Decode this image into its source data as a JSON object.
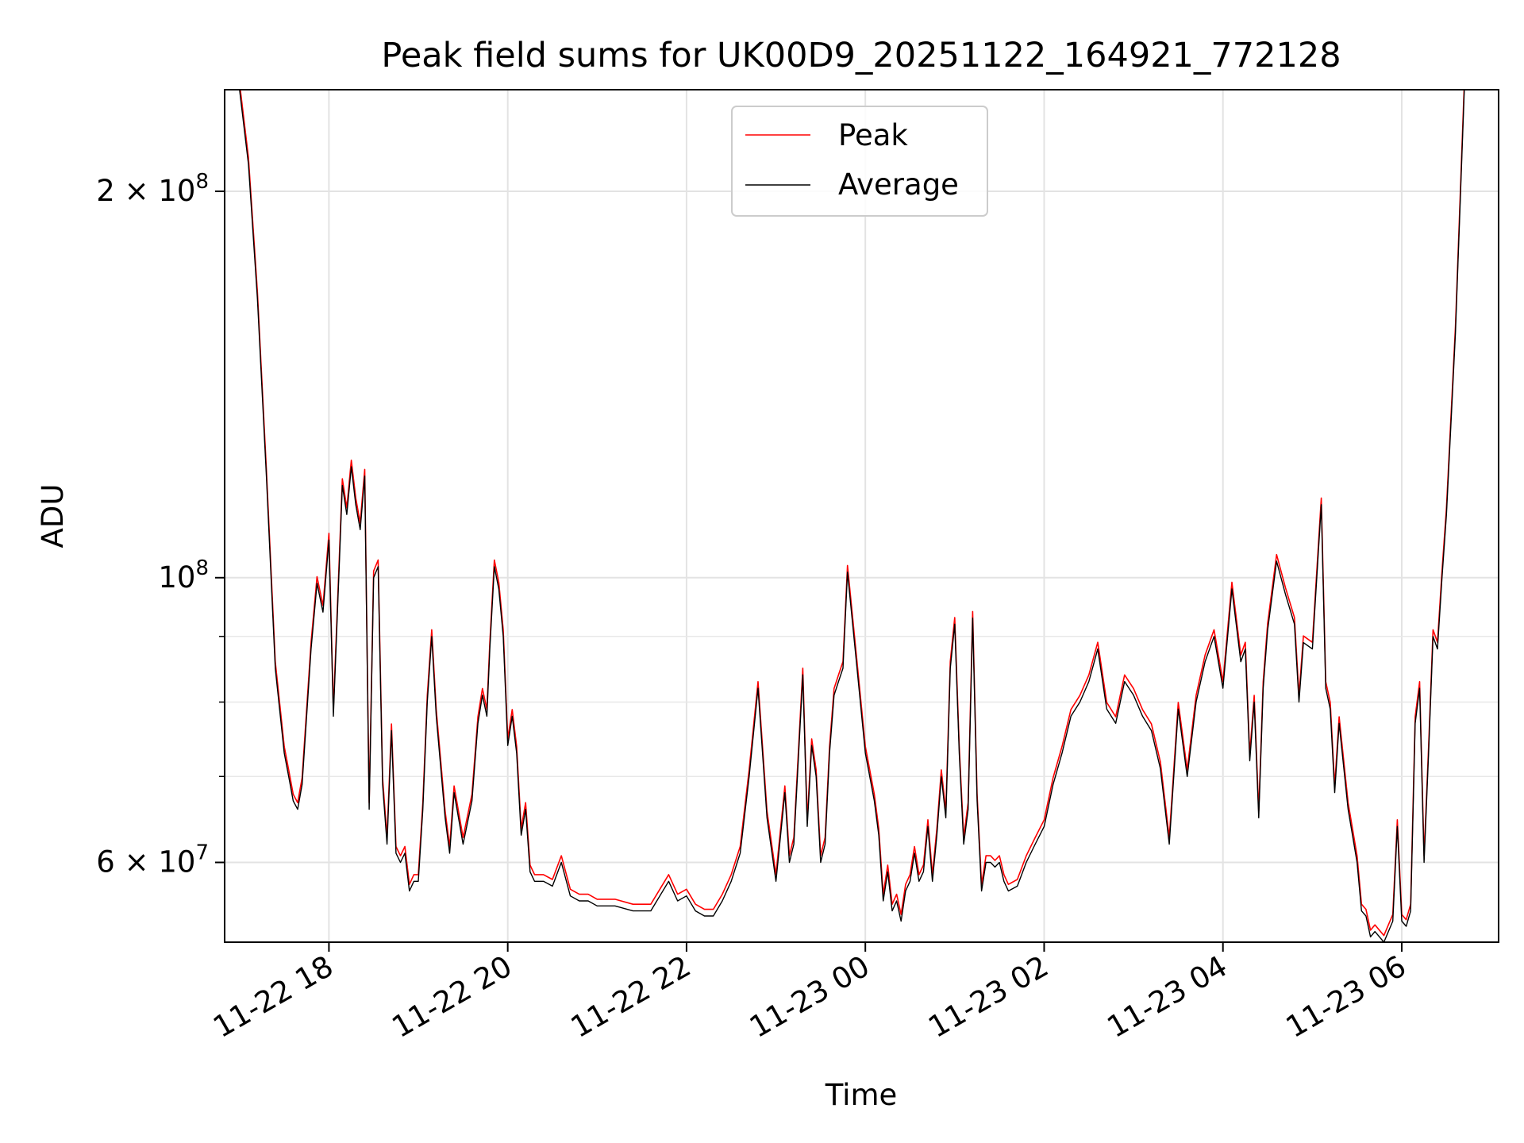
{
  "chart_data": {
    "type": "line",
    "title": "Peak field sums for UK00D9_20251122_164921_772128",
    "xlabel": "Time",
    "ylabel": "ADU",
    "y_scale": "log",
    "ylim": [
      52000000,
      240000000
    ],
    "xlim": [
      "2025-11-22 16:50",
      "2025-11-23 07:05"
    ],
    "grid": true,
    "legend_position": "upper center",
    "x_ticks": [
      {
        "t": "2025-11-22 18:00",
        "label": "11-22 18"
      },
      {
        "t": "2025-11-22 20:00",
        "label": "11-22 20"
      },
      {
        "t": "2025-11-22 22:00",
        "label": "11-22 22"
      },
      {
        "t": "2025-11-23 00:00",
        "label": "11-23 00"
      },
      {
        "t": "2025-11-23 02:00",
        "label": "11-23 02"
      },
      {
        "t": "2025-11-23 04:00",
        "label": "11-23 04"
      },
      {
        "t": "2025-11-23 06:00",
        "label": "11-23 06"
      }
    ],
    "y_ticks_major": [
      {
        "v": 60000000,
        "mant": "6",
        "exp": "7"
      },
      {
        "v": 100000000,
        "mant": "",
        "exp": "8"
      },
      {
        "v": 200000000,
        "mant": "2",
        "exp": "8"
      }
    ],
    "y_ticks_minor": [
      70000000,
      80000000,
      90000000
    ],
    "series": [
      {
        "name": "Peak",
        "color": "#ff0000",
        "offset_fraction": 0.012
      },
      {
        "name": "Average",
        "color": "#000000"
      }
    ],
    "x": [
      "2025-11-22 17:00",
      "2025-11-22 17:06",
      "2025-11-22 17:12",
      "2025-11-22 17:18",
      "2025-11-22 17:24",
      "2025-11-22 17:30",
      "2025-11-22 17:33",
      "2025-11-22 17:36",
      "2025-11-22 17:39",
      "2025-11-22 17:42",
      "2025-11-22 17:48",
      "2025-11-22 17:52",
      "2025-11-22 17:56",
      "2025-11-22 18:00",
      "2025-11-22 18:03",
      "2025-11-22 18:06",
      "2025-11-22 18:09",
      "2025-11-22 18:12",
      "2025-11-22 18:15",
      "2025-11-22 18:18",
      "2025-11-22 18:21",
      "2025-11-22 18:24",
      "2025-11-22 18:27",
      "2025-11-22 18:30",
      "2025-11-22 18:33",
      "2025-11-22 18:36",
      "2025-11-22 18:39",
      "2025-11-22 18:42",
      "2025-11-22 18:45",
      "2025-11-22 18:48",
      "2025-11-22 18:51",
      "2025-11-22 18:54",
      "2025-11-22 18:57",
      "2025-11-22 19:00",
      "2025-11-22 19:03",
      "2025-11-22 19:06",
      "2025-11-22 19:09",
      "2025-11-22 19:12",
      "2025-11-22 19:18",
      "2025-11-22 19:21",
      "2025-11-22 19:24",
      "2025-11-22 19:30",
      "2025-11-22 19:36",
      "2025-11-22 19:40",
      "2025-11-22 19:43",
      "2025-11-22 19:46",
      "2025-11-22 19:48",
      "2025-11-22 19:51",
      "2025-11-22 19:54",
      "2025-11-22 19:57",
      "2025-11-22 20:00",
      "2025-11-22 20:03",
      "2025-11-22 20:06",
      "2025-11-22 20:09",
      "2025-11-22 20:12",
      "2025-11-22 20:15",
      "2025-11-22 20:18",
      "2025-11-22 20:21",
      "2025-11-22 20:24",
      "2025-11-22 20:30",
      "2025-11-22 20:36",
      "2025-11-22 20:42",
      "2025-11-22 20:48",
      "2025-11-22 20:54",
      "2025-11-22 21:00",
      "2025-11-22 21:12",
      "2025-11-22 21:24",
      "2025-11-22 21:36",
      "2025-11-22 21:48",
      "2025-11-22 21:54",
      "2025-11-22 22:00",
      "2025-11-22 22:06",
      "2025-11-22 22:12",
      "2025-11-22 22:18",
      "2025-11-22 22:24",
      "2025-11-22 22:30",
      "2025-11-22 22:36",
      "2025-11-22 22:42",
      "2025-11-22 22:48",
      "2025-11-22 22:54",
      "2025-11-22 23:00",
      "2025-11-22 23:06",
      "2025-11-22 23:09",
      "2025-11-22 23:12",
      "2025-11-22 23:18",
      "2025-11-22 23:21",
      "2025-11-22 23:24",
      "2025-11-22 23:27",
      "2025-11-22 23:30",
      "2025-11-22 23:33",
      "2025-11-22 23:36",
      "2025-11-22 23:39",
      "2025-11-22 23:42",
      "2025-11-22 23:45",
      "2025-11-22 23:48",
      "2025-11-22 23:54",
      "2025-11-23 00:00",
      "2025-11-23 00:06",
      "2025-11-23 00:09",
      "2025-11-23 00:12",
      "2025-11-23 00:15",
      "2025-11-23 00:18",
      "2025-11-23 00:21",
      "2025-11-23 00:24",
      "2025-11-23 00:27",
      "2025-11-23 00:30",
      "2025-11-23 00:33",
      "2025-11-23 00:36",
      "2025-11-23 00:39",
      "2025-11-23 00:42",
      "2025-11-23 00:45",
      "2025-11-23 00:48",
      "2025-11-23 00:51",
      "2025-11-23 00:54",
      "2025-11-23 00:57",
      "2025-11-23 01:00",
      "2025-11-23 01:03",
      "2025-11-23 01:06",
      "2025-11-23 01:09",
      "2025-11-23 01:12",
      "2025-11-23 01:15",
      "2025-11-23 01:18",
      "2025-11-23 01:21",
      "2025-11-23 01:24",
      "2025-11-23 01:27",
      "2025-11-23 01:30",
      "2025-11-23 01:33",
      "2025-11-23 01:36",
      "2025-11-23 01:42",
      "2025-11-23 01:48",
      "2025-11-23 01:54",
      "2025-11-23 02:00",
      "2025-11-23 02:06",
      "2025-11-23 02:12",
      "2025-11-23 02:18",
      "2025-11-23 02:24",
      "2025-11-23 02:30",
      "2025-11-23 02:36",
      "2025-11-23 02:42",
      "2025-11-23 02:48",
      "2025-11-23 02:54",
      "2025-11-23 03:00",
      "2025-11-23 03:06",
      "2025-11-23 03:12",
      "2025-11-23 03:18",
      "2025-11-23 03:24",
      "2025-11-23 03:30",
      "2025-11-23 03:36",
      "2025-11-23 03:42",
      "2025-11-23 03:48",
      "2025-11-23 03:54",
      "2025-11-23 04:00",
      "2025-11-23 04:06",
      "2025-11-23 04:12",
      "2025-11-23 04:15",
      "2025-11-23 04:18",
      "2025-11-23 04:21",
      "2025-11-23 04:24",
      "2025-11-23 04:27",
      "2025-11-23 04:30",
      "2025-11-23 04:36",
      "2025-11-23 04:42",
      "2025-11-23 04:48",
      "2025-11-23 04:51",
      "2025-11-23 04:54",
      "2025-11-23 05:00",
      "2025-11-23 05:06",
      "2025-11-23 05:09",
      "2025-11-23 05:12",
      "2025-11-23 05:15",
      "2025-11-23 05:18",
      "2025-11-23 05:24",
      "2025-11-23 05:30",
      "2025-11-23 05:33",
      "2025-11-23 05:36",
      "2025-11-23 05:39",
      "2025-11-23 05:42",
      "2025-11-23 05:48",
      "2025-11-23 05:54",
      "2025-11-23 05:57",
      "2025-11-23 06:00",
      "2025-11-23 06:03",
      "2025-11-23 06:06",
      "2025-11-23 06:09",
      "2025-11-23 06:12",
      "2025-11-23 06:15",
      "2025-11-23 06:18",
      "2025-11-23 06:21",
      "2025-11-23 06:24",
      "2025-11-23 06:27",
      "2025-11-23 06:30",
      "2025-11-23 06:36",
      "2025-11-23 06:42",
      "2025-11-23 06:48",
      "2025-11-23 06:54",
      "2025-11-23 07:00"
    ],
    "average": [
      240000000,
      210000000,
      165000000,
      120000000,
      85000000,
      73000000,
      70000000,
      67000000,
      66000000,
      69000000,
      88000000,
      99000000,
      94000000,
      107000000,
      78000000,
      96000000,
      118000000,
      112000000,
      122000000,
      114000000,
      109000000,
      120000000,
      66000000,
      100000000,
      102000000,
      69000000,
      62000000,
      76000000,
      61000000,
      60000000,
      61000000,
      57000000,
      58000000,
      58000000,
      66000000,
      80000000,
      90000000,
      78000000,
      65000000,
      61000000,
      68000000,
      62000000,
      67000000,
      77000000,
      81000000,
      78000000,
      88000000,
      102000000,
      98000000,
      90000000,
      74000000,
      78000000,
      73000000,
      63000000,
      66000000,
      59000000,
      58000000,
      58000000,
      58000000,
      57500000,
      60000000,
      56500000,
      56000000,
      56000000,
      55500000,
      55500000,
      55000000,
      55000000,
      58000000,
      56000000,
      56500000,
      55000000,
      54500000,
      54500000,
      56000000,
      58000000,
      61000000,
      70000000,
      82000000,
      65000000,
      58000000,
      68000000,
      60000000,
      62000000,
      84000000,
      64000000,
      74000000,
      70000000,
      60000000,
      62000000,
      73000000,
      81000000,
      83000000,
      85000000,
      101000000,
      86000000,
      73000000,
      67000000,
      63000000,
      56000000,
      59000000,
      55000000,
      56000000,
      54000000,
      57000000,
      58000000,
      61000000,
      58000000,
      59000000,
      64000000,
      58000000,
      63000000,
      70000000,
      65000000,
      85000000,
      92000000,
      73000000,
      62000000,
      66000000,
      93000000,
      67000000,
      57000000,
      60000000,
      60000000,
      59500000,
      60000000,
      58000000,
      57000000,
      57500000,
      60000000,
      62000000,
      64000000,
      69000000,
      73000000,
      78000000,
      80000000,
      83000000,
      88000000,
      79000000,
      77000000,
      83000000,
      81000000,
      78000000,
      76000000,
      71000000,
      62000000,
      79000000,
      70000000,
      80000000,
      86000000,
      90000000,
      82000000,
      98000000,
      86000000,
      88000000,
      72000000,
      80000000,
      65000000,
      82000000,
      91000000,
      103000000,
      97000000,
      92000000,
      80000000,
      89000000,
      88000000,
      114000000,
      82000000,
      79000000,
      68000000,
      77000000,
      66000000,
      60000000,
      55000000,
      54500000,
      52500000,
      53000000,
      52000000,
      54000000,
      64000000,
      54000000,
      53500000,
      55000000,
      77000000,
      82000000,
      60000000,
      73000000,
      90000000,
      88000000,
      100000000,
      112000000,
      155000000,
      240000000
    ]
  }
}
